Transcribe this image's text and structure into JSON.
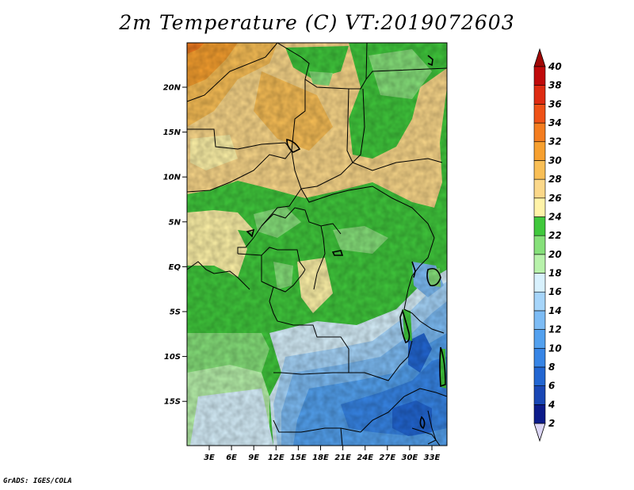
{
  "title": "2m Temperature (C) VT:2019072603",
  "footer": "GrADS: IGES/COLA",
  "lat_labels": [
    "20N",
    "15N",
    "10N",
    "5N",
    "EQ",
    "5S",
    "10S",
    "15S"
  ],
  "lon_labels": [
    "3E",
    "6E",
    "9E",
    "12E",
    "15E",
    "18E",
    "21E",
    "24E",
    "27E",
    "30E",
    "33E"
  ],
  "colorbar": {
    "levels": [
      "2",
      "4",
      "6",
      "8",
      "10",
      "12",
      "14",
      "16",
      "18",
      "20",
      "22",
      "24",
      "26",
      "28",
      "30",
      "32",
      "34",
      "36",
      "38",
      "40"
    ],
    "colors": [
      "#0c1b8a",
      "#1947b5",
      "#2266d2",
      "#3785e6",
      "#53a1ef",
      "#7dbcf5",
      "#a6d5fa",
      "#d8f1fd",
      "#b8f2ab",
      "#86e07a",
      "#40c83c",
      "#fff3a8",
      "#fbd88a",
      "#f9bf56",
      "#f7a02f",
      "#f47d1f",
      "#ef5217",
      "#de2b12",
      "#c00a0b"
    ],
    "under_color": "#dcd6f5",
    "over_color": "#a00806"
  }
}
